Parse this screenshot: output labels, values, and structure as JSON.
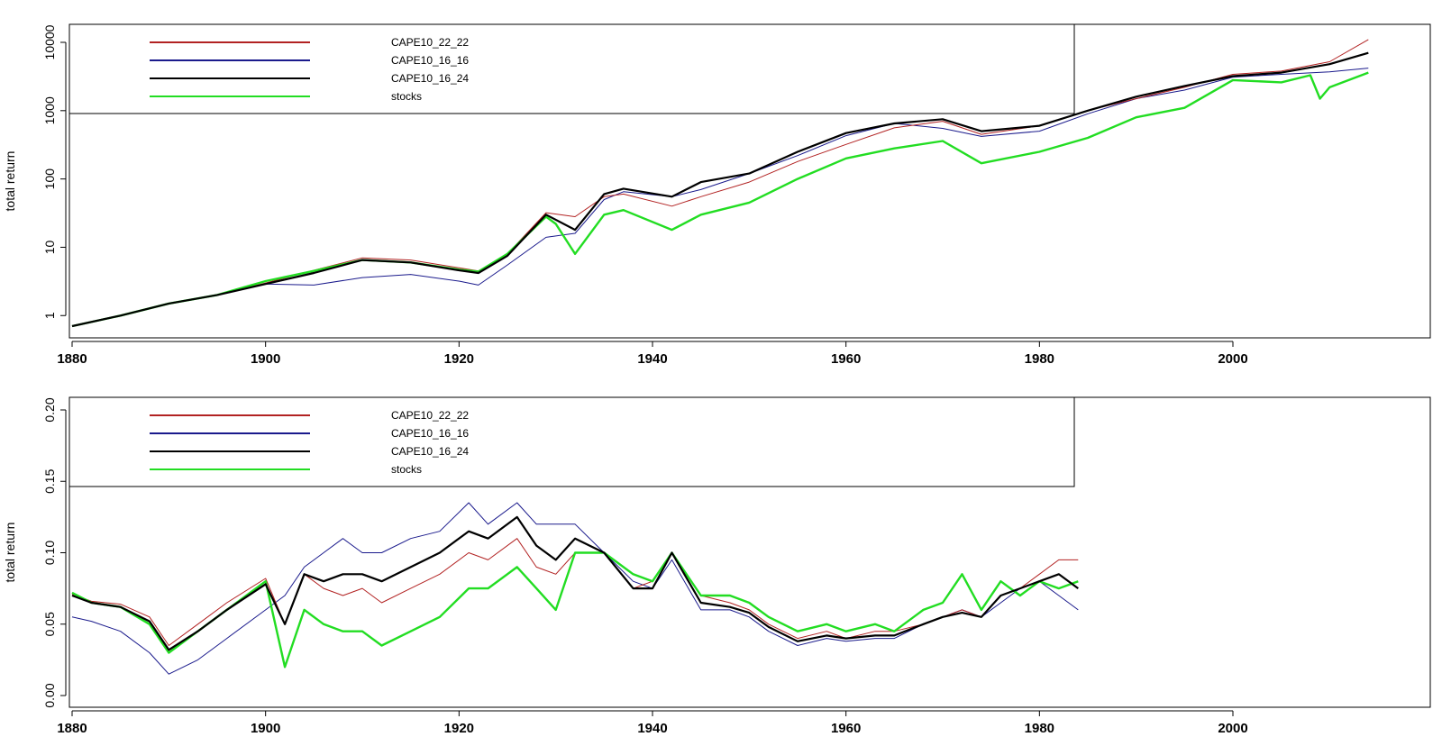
{
  "colors": {
    "CAPE10_22_22": "#b22222",
    "CAPE10_16_16": "#1a1a8c",
    "CAPE10_16_24": "#000000",
    "stocks": "#22dd22"
  },
  "chart_data": [
    {
      "type": "line",
      "title": "",
      "xlabel": "",
      "ylabel": "total return",
      "yscale": "log",
      "xlim": [
        1880,
        2015
      ],
      "ylim": [
        0.7,
        12000
      ],
      "xticks": [
        1880,
        1900,
        1920,
        1940,
        1960,
        1980,
        2000
      ],
      "yticks": [
        1,
        10,
        100,
        1000,
        10000
      ],
      "ytick_labels": [
        "1",
        "10",
        "100",
        "1000",
        "10000"
      ],
      "grid": false,
      "legend_position": "top-left",
      "legend": [
        "CAPE10_22_22",
        "CAPE10_16_16",
        "CAPE10_16_24",
        "stocks"
      ],
      "series": [
        {
          "name": "CAPE10_22_22",
          "x": [
            1880,
            1885,
            1890,
            1895,
            1900,
            1905,
            1910,
            1915,
            1920,
            1922,
            1925,
            1929,
            1932,
            1935,
            1937,
            1942,
            1945,
            1950,
            1955,
            1960,
            1965,
            1970,
            1974,
            1980,
            1985,
            1990,
            1995,
            2000,
            2005,
            2010,
            2014
          ],
          "y": [
            0.7,
            1.0,
            1.5,
            2.0,
            3.0,
            4.6,
            7.0,
            6.5,
            5.0,
            4.5,
            8.0,
            32,
            28,
            55,
            60,
            40,
            55,
            90,
            180,
            320,
            560,
            700,
            450,
            600,
            1000,
            1500,
            2200,
            3400,
            3800,
            5200,
            11000
          ]
        },
        {
          "name": "CAPE10_16_16",
          "x": [
            1880,
            1885,
            1890,
            1895,
            1900,
            1905,
            1910,
            1915,
            1920,
            1922,
            1925,
            1929,
            1932,
            1935,
            1937,
            1942,
            1945,
            1950,
            1955,
            1960,
            1965,
            1970,
            1974,
            1980,
            1985,
            1990,
            1995,
            2000,
            2005,
            2010,
            2014
          ],
          "y": [
            0.7,
            1.0,
            1.5,
            2.0,
            2.9,
            2.8,
            3.6,
            4.0,
            3.2,
            2.8,
            5.5,
            14,
            16,
            50,
            65,
            55,
            70,
            120,
            220,
            430,
            650,
            550,
            420,
            500,
            900,
            1500,
            2000,
            3100,
            3400,
            3700,
            4200
          ]
        },
        {
          "name": "CAPE10_16_24",
          "x": [
            1880,
            1885,
            1890,
            1895,
            1900,
            1905,
            1910,
            1915,
            1920,
            1922,
            1925,
            1929,
            1932,
            1935,
            1937,
            1942,
            1945,
            1950,
            1955,
            1960,
            1965,
            1970,
            1974,
            1980,
            1985,
            1990,
            1995,
            2000,
            2005,
            2010,
            2014
          ],
          "y": [
            0.7,
            1.0,
            1.5,
            2.0,
            2.9,
            4.2,
            6.5,
            6.0,
            4.6,
            4.2,
            7.5,
            30,
            18,
            60,
            72,
            55,
            90,
            120,
            250,
            470,
            650,
            750,
            500,
            600,
            1000,
            1600,
            2300,
            3200,
            3600,
            4800,
            7000
          ]
        },
        {
          "name": "stocks",
          "x": [
            1880,
            1885,
            1890,
            1895,
            1900,
            1905,
            1910,
            1915,
            1920,
            1922,
            1925,
            1929,
            1930,
            1932,
            1935,
            1937,
            1942,
            1945,
            1950,
            1955,
            1960,
            1965,
            1970,
            1974,
            1980,
            1985,
            1990,
            1995,
            2000,
            2005,
            2008,
            2009,
            2010,
            2014
          ],
          "y": [
            0.7,
            1.0,
            1.5,
            2.0,
            3.2,
            4.5,
            6.5,
            6.0,
            4.7,
            4.4,
            8.0,
            28,
            22,
            8,
            30,
            35,
            18,
            30,
            45,
            100,
            200,
            280,
            360,
            170,
            250,
            400,
            800,
            1100,
            2800,
            2600,
            3300,
            1500,
            2200,
            3600
          ]
        }
      ]
    },
    {
      "type": "line",
      "title": "",
      "xlabel": "",
      "ylabel": "total return",
      "yscale": "linear",
      "xlim": [
        1880,
        2015
      ],
      "ylim": [
        0,
        0.2
      ],
      "xticks": [
        1880,
        1900,
        1920,
        1940,
        1960,
        1980,
        2000
      ],
      "yticks": [
        0,
        0.05,
        0.1,
        0.15,
        0.2
      ],
      "ytick_labels": [
        "0.00",
        "0.05",
        "0.10",
        "0.15",
        "0.20"
      ],
      "grid": false,
      "legend_position": "top-left",
      "legend": [
        "CAPE10_22_22",
        "CAPE10_16_16",
        "CAPE10_16_24",
        "stocks"
      ],
      "series": [
        {
          "name": "CAPE10_22_22",
          "x": [
            1880,
            1882,
            1885,
            1888,
            1890,
            1893,
            1896,
            1900,
            1902,
            1904,
            1906,
            1908,
            1910,
            1912,
            1915,
            1918,
            1921,
            1923,
            1926,
            1928,
            1930,
            1932,
            1935,
            1938,
            1940,
            1942,
            1945,
            1948,
            1950,
            1952,
            1955,
            1958,
            1960,
            1963,
            1965,
            1968,
            1970,
            1972,
            1974,
            1976,
            1978,
            1980,
            1982,
            1984
          ],
          "y": [
            0.071,
            0.066,
            0.064,
            0.055,
            0.035,
            0.05,
            0.065,
            0.082,
            0.05,
            0.085,
            0.075,
            0.07,
            0.075,
            0.065,
            0.075,
            0.085,
            0.1,
            0.095,
            0.11,
            0.09,
            0.085,
            0.1,
            0.1,
            0.075,
            0.08,
            0.1,
            0.07,
            0.065,
            0.06,
            0.05,
            0.04,
            0.045,
            0.04,
            0.045,
            0.045,
            0.05,
            0.055,
            0.06,
            0.055,
            0.07,
            0.075,
            0.085,
            0.095,
            0.095
          ]
        },
        {
          "name": "CAPE10_16_16",
          "x": [
            1880,
            1882,
            1885,
            1888,
            1890,
            1893,
            1896,
            1900,
            1902,
            1904,
            1906,
            1908,
            1910,
            1912,
            1915,
            1918,
            1921,
            1923,
            1926,
            1928,
            1930,
            1932,
            1935,
            1938,
            1940,
            1942,
            1945,
            1948,
            1950,
            1952,
            1955,
            1958,
            1960,
            1963,
            1965,
            1968,
            1970,
            1972,
            1974,
            1976,
            1978,
            1980,
            1982,
            1984
          ],
          "y": [
            0.055,
            0.052,
            0.045,
            0.03,
            0.015,
            0.025,
            0.04,
            0.06,
            0.07,
            0.09,
            0.1,
            0.11,
            0.1,
            0.1,
            0.11,
            0.115,
            0.135,
            0.12,
            0.135,
            0.12,
            0.12,
            0.12,
            0.1,
            0.08,
            0.075,
            0.095,
            0.06,
            0.06,
            0.055,
            0.045,
            0.035,
            0.04,
            0.038,
            0.04,
            0.04,
            0.05,
            0.055,
            0.06,
            0.055,
            0.065,
            0.075,
            0.08,
            0.07,
            0.06
          ]
        },
        {
          "name": "CAPE10_16_24",
          "x": [
            1880,
            1882,
            1885,
            1888,
            1890,
            1893,
            1896,
            1900,
            1902,
            1904,
            1906,
            1908,
            1910,
            1912,
            1915,
            1918,
            1921,
            1923,
            1926,
            1928,
            1930,
            1932,
            1935,
            1938,
            1940,
            1942,
            1945,
            1948,
            1950,
            1952,
            1955,
            1958,
            1960,
            1963,
            1965,
            1968,
            1970,
            1972,
            1974,
            1976,
            1978,
            1980,
            1982,
            1984
          ],
          "y": [
            0.07,
            0.065,
            0.062,
            0.052,
            0.032,
            0.045,
            0.06,
            0.078,
            0.05,
            0.085,
            0.08,
            0.085,
            0.085,
            0.08,
            0.09,
            0.1,
            0.115,
            0.11,
            0.125,
            0.105,
            0.095,
            0.11,
            0.1,
            0.075,
            0.075,
            0.1,
            0.065,
            0.062,
            0.058,
            0.048,
            0.038,
            0.042,
            0.04,
            0.042,
            0.042,
            0.05,
            0.055,
            0.058,
            0.055,
            0.07,
            0.075,
            0.08,
            0.085,
            0.075
          ]
        },
        {
          "name": "stocks",
          "x": [
            1880,
            1882,
            1885,
            1888,
            1890,
            1893,
            1896,
            1900,
            1902,
            1904,
            1906,
            1908,
            1910,
            1912,
            1915,
            1918,
            1921,
            1923,
            1926,
            1928,
            1930,
            1932,
            1935,
            1938,
            1940,
            1942,
            1945,
            1948,
            1950,
            1952,
            1955,
            1958,
            1960,
            1963,
            1965,
            1968,
            1970,
            1972,
            1974,
            1976,
            1978,
            1980,
            1982,
            1984
          ],
          "y": [
            0.072,
            0.065,
            0.062,
            0.05,
            0.03,
            0.045,
            0.06,
            0.08,
            0.02,
            0.06,
            0.05,
            0.045,
            0.045,
            0.035,
            0.045,
            0.055,
            0.075,
            0.075,
            0.09,
            0.075,
            0.06,
            0.1,
            0.1,
            0.085,
            0.08,
            0.1,
            0.07,
            0.07,
            0.065,
            0.055,
            0.045,
            0.05,
            0.045,
            0.05,
            0.045,
            0.06,
            0.065,
            0.085,
            0.06,
            0.08,
            0.07,
            0.08,
            0.075,
            0.08
          ]
        }
      ]
    }
  ]
}
